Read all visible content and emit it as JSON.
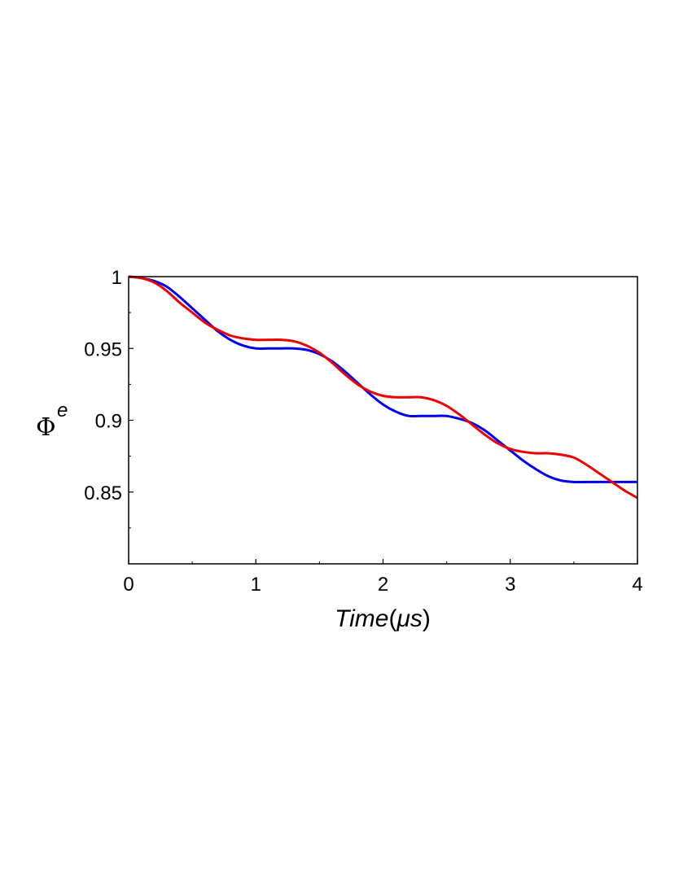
{
  "chart_data": {
    "type": "line",
    "title": "",
    "xlabel": {
      "main": "Time",
      "unit": "μs"
    },
    "ylabel": {
      "main": "Φ",
      "superscript": "e"
    },
    "xlim": [
      0,
      4
    ],
    "ylim": [
      0.8,
      1.0
    ],
    "xticks": [
      0,
      1,
      2,
      3,
      4
    ],
    "xtick_labels": [
      "0",
      "1",
      "2",
      "3",
      "4"
    ],
    "yticks": [
      0.85,
      0.9,
      0.95,
      1.0
    ],
    "ytick_labels": [
      "0.85",
      "0.9",
      "0.95",
      "1"
    ],
    "grid": false,
    "legend": "none",
    "series": [
      {
        "color": "#0000ee",
        "x": [
          0,
          0.1,
          0.2,
          0.3,
          0.4,
          0.5,
          0.6,
          0.7,
          0.8,
          0.9,
          1.0,
          1.1,
          1.2,
          1.3,
          1.4,
          1.5,
          1.6,
          1.7,
          1.8,
          1.9,
          2.0,
          2.1,
          2.2,
          2.3,
          2.4,
          2.5,
          2.6,
          2.7,
          2.8,
          2.9,
          3.0,
          3.1,
          3.2,
          3.3,
          3.4,
          3.5,
          3.6,
          3.7,
          3.8,
          3.9,
          4.0
        ],
        "y": [
          1.0,
          0.999,
          0.997,
          0.993,
          0.986,
          0.978,
          0.97,
          0.962,
          0.956,
          0.952,
          0.95,
          0.95,
          0.95,
          0.95,
          0.949,
          0.946,
          0.941,
          0.934,
          0.926,
          0.918,
          0.911,
          0.906,
          0.903,
          0.903,
          0.903,
          0.903,
          0.901,
          0.898,
          0.893,
          0.886,
          0.879,
          0.872,
          0.866,
          0.861,
          0.858,
          0.857,
          0.857,
          0.857,
          0.857,
          0.857,
          0.857
        ]
      },
      {
        "color": "#ee0000",
        "x": [
          0,
          0.1,
          0.2,
          0.3,
          0.4,
          0.5,
          0.6,
          0.7,
          0.8,
          0.9,
          1.0,
          1.1,
          1.2,
          1.3,
          1.4,
          1.5,
          1.6,
          1.7,
          1.8,
          1.9,
          2.0,
          2.1,
          2.2,
          2.3,
          2.4,
          2.5,
          2.6,
          2.7,
          2.8,
          2.9,
          3.0,
          3.1,
          3.2,
          3.3,
          3.4,
          3.5,
          3.6,
          3.7,
          3.8,
          3.9,
          4.0
        ],
        "y": [
          1.0,
          0.999,
          0.996,
          0.99,
          0.982,
          0.975,
          0.968,
          0.963,
          0.959,
          0.957,
          0.956,
          0.956,
          0.956,
          0.955,
          0.952,
          0.947,
          0.94,
          0.932,
          0.925,
          0.92,
          0.917,
          0.916,
          0.916,
          0.916,
          0.914,
          0.91,
          0.904,
          0.897,
          0.89,
          0.884,
          0.88,
          0.878,
          0.877,
          0.877,
          0.876,
          0.874,
          0.869,
          0.863,
          0.857,
          0.851,
          0.846
        ]
      }
    ]
  }
}
